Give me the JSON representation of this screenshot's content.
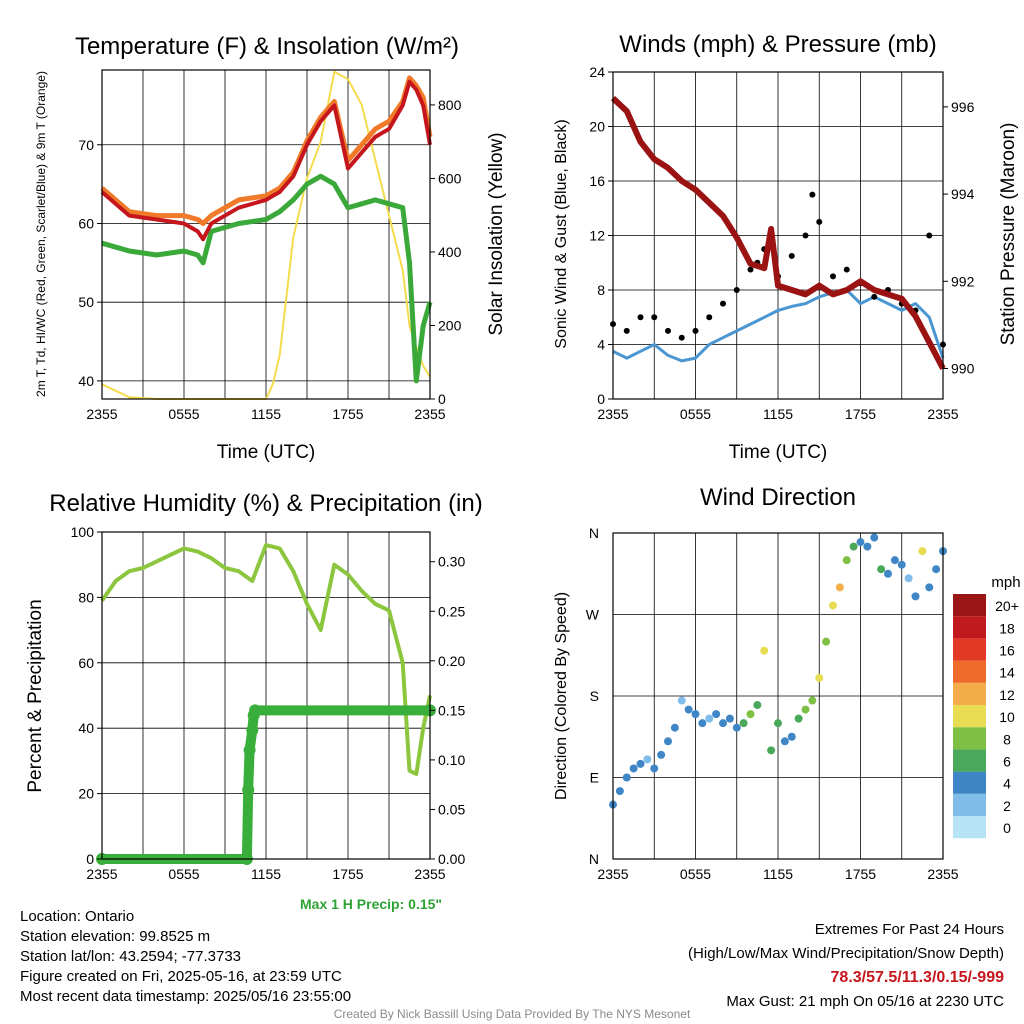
{
  "colors": {
    "air_temp": "#c4161c",
    "dew_point": "#3aa93a",
    "heat_index": "#f07a2a",
    "solar": "#f5dc4c",
    "wind_speed": "#4a96d2",
    "wind_gust": "#000000",
    "pressure": "#9a1212",
    "humidity": "#8cc63e",
    "precip": "#3aae3a"
  },
  "chart_data": [
    {
      "type": "line",
      "title": "Temperature (F) & Insolation (W/m²)",
      "xlabel": "Time (UTC)",
      "ylabel": "2m T, Td, HI/WC (Red, Green, Scarlet/Blue) & 9m T (Orange)",
      "ylabel_right": "Solar Insolation (Yellow)",
      "xticks": [
        "2355",
        "0555",
        "1155",
        "1755",
        "2355"
      ],
      "x": [
        0,
        2,
        4,
        6,
        7,
        7.4,
        8,
        10,
        12,
        12.5,
        13,
        14,
        14.5,
        15,
        16,
        17,
        18,
        19,
        20,
        21,
        22,
        22.5,
        23,
        23.5,
        24
      ],
      "yticks_left": [
        40,
        50,
        60,
        70
      ],
      "ylim_left": [
        37.7,
        79.5
      ],
      "yticks_right": [
        0,
        200,
        400,
        600,
        800
      ],
      "ylim_right": [
        0,
        895
      ],
      "series": [
        {
          "key": "air_temp",
          "axis": "left",
          "values": [
            64,
            61,
            60.5,
            60,
            59,
            58,
            60,
            62,
            63,
            63.5,
            64,
            66,
            68,
            70,
            73,
            75,
            67,
            69,
            71,
            72,
            75,
            78,
            77,
            75,
            70
          ]
        },
        {
          "key": "heat_index",
          "axis": "left",
          "values": [
            64.5,
            61.5,
            61,
            61,
            60.5,
            60,
            61,
            63,
            63.5,
            64,
            64.5,
            66.5,
            68.5,
            70.5,
            73.5,
            75.5,
            68,
            70,
            72,
            73,
            75.5,
            78.5,
            77.5,
            76,
            71
          ]
        },
        {
          "key": "dew_point",
          "axis": "left",
          "values": [
            57.5,
            56.5,
            56,
            56.5,
            56,
            55,
            59,
            60,
            60.5,
            61,
            61.5,
            63,
            64,
            65,
            66,
            65,
            62,
            62.5,
            63,
            62.5,
            62,
            55,
            40,
            47,
            50
          ]
        },
        {
          "key": "solar",
          "axis": "right",
          "values": [
            40,
            5,
            0,
            0,
            0,
            0,
            0,
            0,
            0,
            40,
            120,
            440,
            520,
            600,
            700,
            890,
            870,
            800,
            650,
            500,
            350,
            200,
            140,
            90,
            60
          ]
        }
      ]
    },
    {
      "type": "line",
      "title": "Winds (mph) & Pressure (mb)",
      "xlabel": "Time (UTC)",
      "ylabel": "Sonic Wind & Gust (Blue, Black)",
      "ylabel_right": "Station Pressure (Maroon)",
      "xticks": [
        "2355",
        "0555",
        "1155",
        "1755",
        "2355"
      ],
      "yticks_left": [
        0,
        4,
        8,
        12,
        16,
        20,
        24
      ],
      "ylim_left": [
        0,
        24
      ],
      "yticks_right": [
        990,
        992,
        994,
        996
      ],
      "ylim_right": [
        989.3,
        996.8
      ],
      "wind_x": [
        0,
        1,
        2,
        3,
        4,
        5,
        6,
        7,
        8,
        9,
        10,
        11,
        12,
        13,
        14,
        15,
        16,
        17,
        18,
        19,
        20,
        21,
        22,
        23,
        24
      ],
      "wind_values": [
        3.5,
        3,
        3.5,
        4,
        3.2,
        2.8,
        3,
        4,
        4.5,
        5,
        5.5,
        6,
        6.5,
        6.8,
        7,
        7.5,
        7.8,
        8,
        7,
        7.5,
        7,
        6.5,
        7,
        6,
        3
      ],
      "gust_x": [
        0,
        1,
        2,
        3,
        4,
        5,
        6,
        7,
        8,
        9,
        10,
        10.5,
        11,
        12,
        13,
        14,
        14.5,
        15,
        16,
        17,
        18,
        19,
        20,
        21,
        22,
        23,
        24
      ],
      "gust_values": [
        5.5,
        5,
        6,
        6,
        5,
        4.5,
        5,
        6,
        7,
        8,
        9.5,
        10,
        11,
        9,
        10.5,
        12,
        15,
        13,
        9,
        9.5,
        8.5,
        7.5,
        8,
        7,
        6.5,
        12,
        4
      ],
      "pressure_x": [
        0,
        1,
        2,
        3,
        4,
        5,
        6,
        7,
        8,
        9,
        10,
        11,
        11.5,
        12,
        13,
        14,
        15,
        16,
        17,
        18,
        19,
        20,
        21,
        22,
        23,
        24
      ],
      "pressure_values": [
        996.2,
        995.9,
        995.2,
        994.8,
        994.6,
        994.3,
        994.1,
        993.8,
        993.5,
        993,
        992.4,
        992.3,
        993.2,
        991.9,
        991.8,
        991.7,
        991.9,
        991.7,
        991.8,
        992,
        991.8,
        991.7,
        991.6,
        991.2,
        990.6,
        990.0
      ]
    },
    {
      "type": "line",
      "title": "Relative Humidity (%) & Precipitation (in)",
      "xlabel": "",
      "ylabel": "Percent & Precipitation",
      "xticks": [
        "2355",
        "0555",
        "1155",
        "1755",
        "2355"
      ],
      "yticks_left": [
        0,
        20,
        40,
        60,
        80,
        100
      ],
      "ylim_left": [
        0,
        100
      ],
      "yticks_right": [
        "0.00",
        "0.05",
        "0.10",
        "0.15",
        "0.20",
        "0.25",
        "0.30"
      ],
      "ylim_right": [
        0,
        0.33
      ],
      "x": [
        0,
        1,
        2,
        3,
        4,
        5,
        6,
        7,
        8,
        9,
        10,
        11,
        12,
        13,
        14,
        15,
        16,
        17,
        18,
        19,
        20,
        21,
        22,
        22.5,
        23,
        23.5,
        24
      ],
      "rh_values": [
        79,
        85,
        88,
        89,
        91,
        93,
        95,
        94,
        92,
        89,
        88,
        85,
        96,
        95,
        88,
        78,
        70,
        90,
        87,
        82,
        78,
        76,
        60,
        27,
        26,
        40,
        50
      ],
      "precip_x": [
        0,
        10.6,
        10.7,
        10.8,
        11,
        11.1,
        11.2,
        24
      ],
      "precip_values": [
        0,
        0,
        0.07,
        0.11,
        0.13,
        0.145,
        0.15,
        0.15
      ],
      "annotation": "Max 1 H Precip: 0.15\""
    },
    {
      "type": "scatter",
      "title": "Wind Direction",
      "xlabel": "",
      "ylabel": "Direction (Colored By Speed)",
      "xticks": [
        "2355",
        "0555",
        "1155",
        "1755",
        "2355"
      ],
      "yticks": [
        "N",
        "E",
        "S",
        "W",
        "N"
      ],
      "ylim": [
        0,
        360
      ],
      "legend_title": "mph",
      "legend_labels": [
        "0",
        "2",
        "4",
        "6",
        "8",
        "10",
        "12",
        "14",
        "16",
        "18",
        "20+"
      ],
      "legend_colors": [
        "#b7e3f7",
        "#7fbde8",
        "#3f86c6",
        "#4aa85a",
        "#7ec043",
        "#e8dc52",
        "#f5ac4a",
        "#ef6b2b",
        "#e23a24",
        "#c01a1e",
        "#9a1616"
      ],
      "x": [
        0,
        0.5,
        1,
        1.5,
        2,
        2.5,
        3,
        3.5,
        4,
        4.5,
        5,
        5.5,
        6,
        6.5,
        7,
        7.5,
        8,
        8.5,
        9,
        9.5,
        10,
        10.5,
        11,
        11.5,
        12,
        12.5,
        13,
        13.5,
        14,
        14.5,
        15,
        15.5,
        16,
        16.5,
        17,
        17.5,
        18,
        18.5,
        19,
        19.5,
        20,
        20.5,
        21,
        21.5,
        22,
        22.5,
        23,
        23.5,
        24
      ],
      "values": [
        60,
        75,
        90,
        100,
        105,
        110,
        100,
        115,
        130,
        145,
        175,
        165,
        160,
        150,
        155,
        160,
        150,
        155,
        145,
        150,
        160,
        170,
        230,
        120,
        150,
        130,
        135,
        155,
        165,
        175,
        200,
        240,
        280,
        300,
        330,
        345,
        350,
        345,
        355,
        320,
        315,
        330,
        325,
        310,
        290,
        340,
        300,
        320,
        340
      ],
      "speeds": [
        4,
        3,
        4,
        4,
        3,
        2,
        3,
        4,
        3,
        4,
        2,
        3,
        4,
        3,
        2,
        4,
        3,
        4,
        4,
        5,
        7,
        6,
        9,
        6,
        5,
        4,
        4,
        6,
        7,
        8,
        9,
        8,
        10,
        11,
        8,
        6,
        4,
        3,
        4,
        5,
        3,
        4,
        3,
        2,
        4,
        9,
        4,
        3,
        4
      ]
    }
  ],
  "info": {
    "location": "Location: Ontario",
    "elevation": "Station elevation: 99.8525 m",
    "latlon": "Station lat/lon: 43.2594; -77.3733",
    "created": "Figure created on Fri, 2025-05-16, at 23:59 UTC",
    "recent": "Most recent data timestamp: 2025/05/16 23:55:00"
  },
  "extremes": {
    "title": "Extremes For Past 24 Hours",
    "subtitle": "(High/Low/Max Wind/Precipitation/Snow Depth)",
    "values": "78.3/57.5/11.3/0.15/-999",
    "gust": "Max Gust: 21 mph On 05/16 at 2230 UTC"
  },
  "credit": "Created By Nick Bassill Using Data Provided By The NYS Mesonet"
}
